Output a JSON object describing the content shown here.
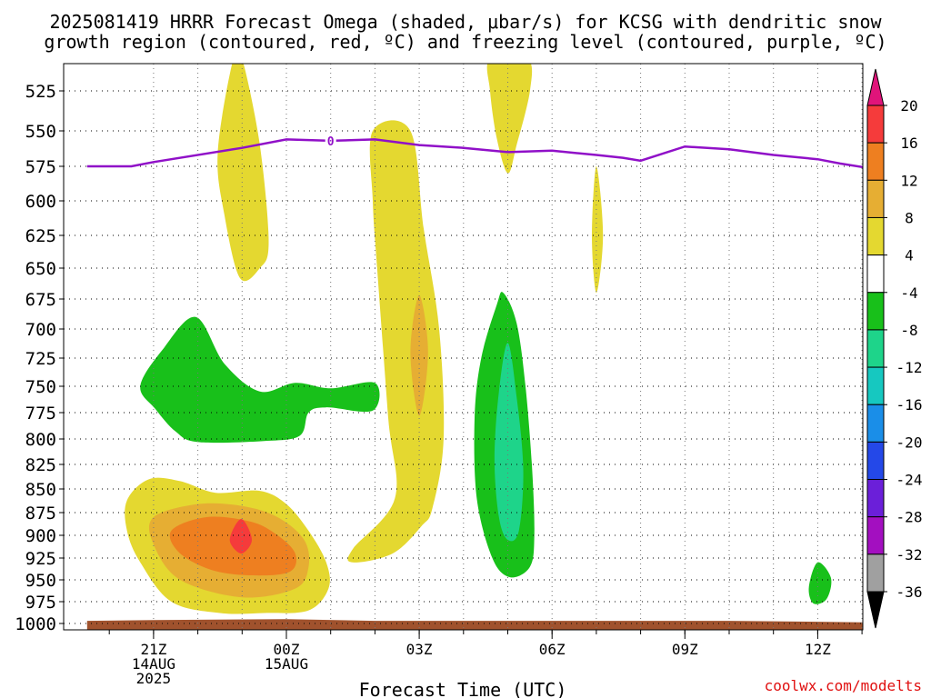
{
  "chart_data": {
    "type": "heatmap",
    "title_line1": "2025081419 HRRR Forecast Omega (shaded, μbar/s) for KCSG with dendritic snow",
    "title_line2": "growth region (contoured, red, ºC) and freezing level (contoured, purple, ºC)",
    "xlabel": "Forecast Time (UTC)",
    "watermark": "coolwx.com/modelts",
    "xlim_hours": [
      -4.5,
      13.5
    ],
    "ylim_hpa": [
      1005,
      505
    ],
    "x_ticks": [
      {
        "h": -3,
        "label": "21Z",
        "sub1": "14AUG",
        "sub2": "2025"
      },
      {
        "h": 0,
        "label": "00Z",
        "sub1": "15AUG",
        "sub2": ""
      },
      {
        "h": 3,
        "label": "03Z",
        "sub1": "",
        "sub2": ""
      },
      {
        "h": 6,
        "label": "06Z",
        "sub1": "",
        "sub2": ""
      },
      {
        "h": 9,
        "label": "09Z",
        "sub1": "",
        "sub2": ""
      },
      {
        "h": 12,
        "label": "12Z",
        "sub1": "",
        "sub2": ""
      }
    ],
    "y_ticks": [
      525,
      550,
      575,
      600,
      625,
      650,
      675,
      700,
      725,
      750,
      775,
      800,
      825,
      850,
      875,
      900,
      925,
      950,
      975,
      1000
    ],
    "colorbar": {
      "labels": [
        "20",
        "16",
        "12",
        "8",
        "4",
        "-4",
        "-8",
        "-12",
        "-16",
        "-20",
        "-24",
        "-28",
        "-32",
        "-36"
      ],
      "colors": [
        "#f53b3b",
        "#ee7f20",
        "#e6ae33",
        "#e4d830",
        "#ffffff",
        "#18c01a",
        "#1ed48a",
        "#16c8c0",
        "#1a8ee8",
        "#2448e8",
        "#6b1fd9",
        "#a30fc0",
        "#a0a0a0"
      ],
      "max_arrow_color": "#e0147a",
      "min_arrow_color": "#000000"
    },
    "freezing_level": {
      "label": "0",
      "color": "#9010c8",
      "points": [
        [
          -4.5,
          575
        ],
        [
          -3.5,
          575
        ],
        [
          -3,
          572
        ],
        [
          -1,
          562
        ],
        [
          0,
          556
        ],
        [
          1,
          557
        ],
        [
          2,
          556
        ],
        [
          3,
          560
        ],
        [
          4,
          562
        ],
        [
          5,
          565
        ],
        [
          6,
          564
        ],
        [
          7,
          567
        ],
        [
          7.6,
          569
        ],
        [
          8,
          571
        ],
        [
          9,
          561
        ],
        [
          10,
          563
        ],
        [
          11,
          567
        ],
        [
          12,
          570
        ],
        [
          12.5,
          573
        ],
        [
          13.5,
          578
        ]
      ]
    },
    "omega_regions": [
      {
        "level": 4,
        "color": "#e4d830",
        "points": [
          [
            -1.2,
            505
          ],
          [
            -1,
            505
          ],
          [
            -0.6,
            560
          ],
          [
            -0.4,
            630
          ],
          [
            -0.6,
            650
          ],
          [
            -1.05,
            658
          ],
          [
            -1.4,
            610
          ],
          [
            -1.55,
            565
          ]
        ]
      },
      {
        "level": 4,
        "color": "#e4d830",
        "points": [
          [
            1.95,
            550
          ],
          [
            2.8,
            550
          ],
          [
            3.1,
            620
          ],
          [
            3.45,
            700
          ],
          [
            3.55,
            800
          ],
          [
            3.3,
            870
          ],
          [
            3.05,
            890
          ],
          [
            2.4,
            920
          ],
          [
            1.5,
            930
          ],
          [
            1.5,
            915
          ],
          [
            2.45,
            860
          ],
          [
            2.3,
            780
          ],
          [
            2.05,
            650
          ],
          [
            1.95,
            600
          ]
        ]
      },
      {
        "level": 4,
        "color": "#e4d830",
        "points": [
          [
            4.6,
            505
          ],
          [
            5.45,
            505
          ],
          [
            5.5,
            525
          ],
          [
            5.2,
            560
          ],
          [
            5.0,
            580
          ],
          [
            4.75,
            555
          ],
          [
            4.6,
            525
          ]
        ]
      },
      {
        "level": 4,
        "color": "#e4d830",
        "points": [
          [
            7.0,
            575
          ],
          [
            7.15,
            625
          ],
          [
            7.0,
            670
          ],
          [
            6.9,
            625
          ]
        ]
      },
      {
        "level": 4,
        "color": "#e4d830",
        "points": [
          [
            -3.6,
            862
          ],
          [
            -3.1,
            840
          ],
          [
            -2.4,
            842
          ],
          [
            -1.6,
            854
          ],
          [
            -0.6,
            852
          ],
          [
            0,
            866
          ],
          [
            0.5,
            895
          ],
          [
            0.9,
            930
          ],
          [
            0.95,
            960
          ],
          [
            0.5,
            985
          ],
          [
            -0.5,
            988
          ],
          [
            -1.5,
            988
          ],
          [
            -2.6,
            975
          ],
          [
            -3.3,
            930
          ],
          [
            -3.6,
            895
          ]
        ]
      },
      {
        "level": 8,
        "color": "#e6ae33",
        "points": [
          [
            -3,
            880
          ],
          [
            -2,
            866
          ],
          [
            -1,
            868
          ],
          [
            -0.2,
            880
          ],
          [
            0.4,
            905
          ],
          [
            0.5,
            935
          ],
          [
            0.2,
            960
          ],
          [
            -1,
            970
          ],
          [
            -2.4,
            950
          ],
          [
            -3,
            910
          ]
        ]
      },
      {
        "level": 12,
        "color": "#ee7f20",
        "points": [
          [
            -2.6,
            895
          ],
          [
            -1.8,
            880
          ],
          [
            -0.8,
            885
          ],
          [
            -0.2,
            900
          ],
          [
            0.2,
            920
          ],
          [
            0.1,
            940
          ],
          [
            -0.6,
            945
          ],
          [
            -1.6,
            940
          ],
          [
            -2.4,
            920
          ]
        ]
      },
      {
        "level": 16,
        "color": "#f53b3b",
        "points": [
          [
            -1.02,
            882
          ],
          [
            -0.78,
            905
          ],
          [
            -1.02,
            920
          ],
          [
            -1.28,
            905
          ]
        ]
      },
      {
        "level": 8,
        "color": "#e6ae33",
        "points": [
          [
            3.0,
            672
          ],
          [
            3.2,
            720
          ],
          [
            3.0,
            778
          ],
          [
            2.8,
            720
          ]
        ]
      },
      {
        "level": -4,
        "color": "#18c01a",
        "points": [
          [
            -2.05,
            690
          ],
          [
            -1.4,
            730
          ],
          [
            -0.6,
            755
          ],
          [
            0.2,
            747
          ],
          [
            1,
            752
          ],
          [
            2,
            747
          ],
          [
            1.95,
            773
          ],
          [
            0.9,
            770
          ],
          [
            0.5,
            775
          ],
          [
            0.3,
            797
          ],
          [
            -0.5,
            802
          ],
          [
            -2.0,
            803
          ],
          [
            -2.5,
            793
          ],
          [
            -2.95,
            772
          ],
          [
            -3.3,
            750
          ],
          [
            -2.8,
            718
          ]
        ]
      },
      {
        "level": -4,
        "color": "#18c01a",
        "points": [
          [
            4.75,
            680
          ],
          [
            4.9,
            670
          ],
          [
            5.2,
            695
          ],
          [
            5.4,
            750
          ],
          [
            5.55,
            830
          ],
          [
            5.6,
            900
          ],
          [
            5.5,
            935
          ],
          [
            5.05,
            947
          ],
          [
            4.65,
            925
          ],
          [
            4.3,
            860
          ],
          [
            4.25,
            780
          ],
          [
            4.4,
            725
          ]
        ]
      },
      {
        "level": -8,
        "color": "#1ed48a",
        "points": [
          [
            5.0,
            712
          ],
          [
            5.2,
            760
          ],
          [
            5.35,
            830
          ],
          [
            5.25,
            895
          ],
          [
            5.0,
            905
          ],
          [
            4.8,
            880
          ],
          [
            4.7,
            820
          ],
          [
            4.8,
            755
          ]
        ]
      },
      {
        "level": -4,
        "color": "#18c01a",
        "points": [
          [
            12.0,
            930
          ],
          [
            12.3,
            948
          ],
          [
            12.2,
            972
          ],
          [
            11.9,
            977
          ],
          [
            11.8,
            958
          ]
        ]
      }
    ],
    "terrain": {
      "color": "#a0522d",
      "points": [
        [
          -4.5,
          997
        ],
        [
          -3,
          996
        ],
        [
          0,
          995
        ],
        [
          2,
          997
        ],
        [
          10,
          997
        ],
        [
          12,
          998
        ],
        [
          13.5,
          999
        ]
      ]
    }
  }
}
